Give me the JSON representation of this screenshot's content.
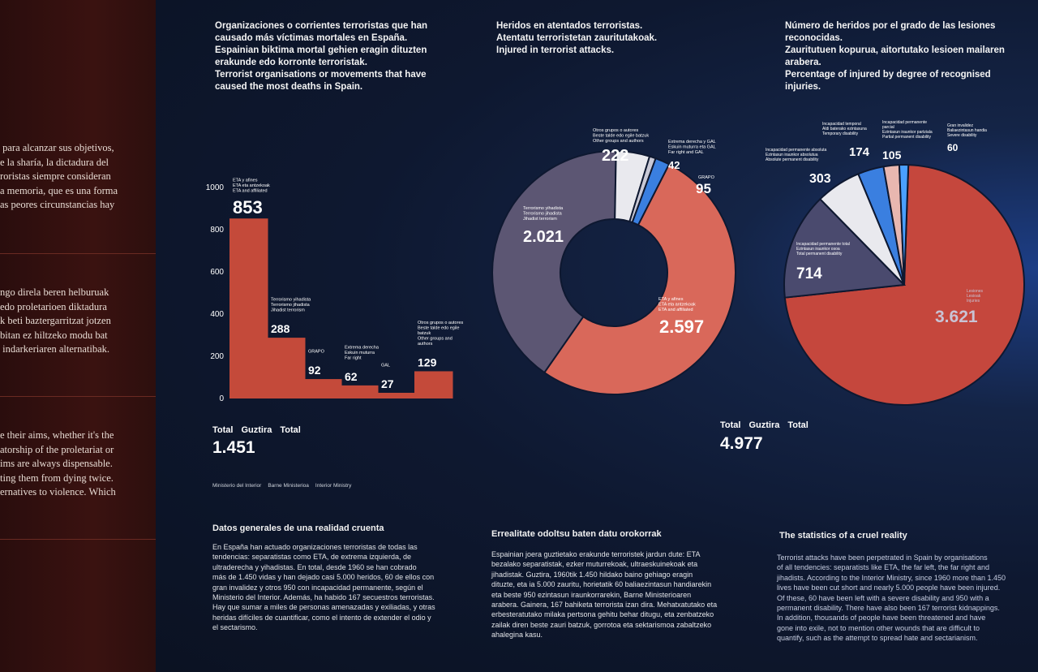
{
  "wall_text": {
    "block1": [
      " para alcanzar sus objetivos,",
      "e la sharía, la dictadura del",
      "roristas siempre consideran",
      "a memoria, que es una forma",
      "as peores circunstancias hay"
    ],
    "block2": [
      "ngo direla beren helburuak",
      "edo proletarioen diktadura",
      "k beti baztergarritzat jotzen",
      "bitan ez hiltzeko modu bat",
      " indarkeriaren alternatibak."
    ],
    "block3": [
      "e their aims, whether it's the",
      "atorship of the proletariat or",
      "ims are always dispensable.",
      "ting them from dying twice.",
      "ernatives to violence. Which"
    ]
  },
  "chart1": {
    "title": [
      "Organizaciones o corrientes terroristas que han",
      "causado más víctimas mortales en España.",
      "Espainian biktima mortal gehien eragin dituzten",
      "erakunde edo korronte terroristak.",
      "Terrorist organisations or movements that have",
      "caused the most deaths in Spain."
    ],
    "total_labels": [
      "Total",
      "Guztira",
      "Total"
    ],
    "total": "1.451",
    "source": [
      "Ministerio del Interior",
      "Barne Ministerioa",
      "Interior Ministry"
    ]
  },
  "chart2": {
    "title": [
      "Heridos en atentados terroristas.",
      "Atentatu terroristetan zauritutakoak.",
      "Injured in terrorist attacks."
    ],
    "total_labels": [
      "Total",
      "Guztira",
      "Total"
    ],
    "total": "4.977"
  },
  "chart3": {
    "title": [
      "Número de heridos por el grado de las lesiones",
      "reconocidas.",
      "Zauritutuen kopurua, aitortutako lesioen mailaren arabera.",
      "Percentage of injured by degree of recognised injuries."
    ]
  },
  "colors": {
    "red": "#c5473d",
    "bar_red": "#c44a3a",
    "salmon": "#d9685a",
    "slate": "#5c5673",
    "slate2": "#4a4a6e",
    "white": "#e9e9ee",
    "blue": "#3a7fe0",
    "light": "#c9c9d6"
  },
  "chart_data": [
    {
      "type": "bar",
      "categories": [
        "ETA y afines / ETA eta antzekoak / ETA and affiliated",
        "Terrorismo yihadista / Terrorismo jihadista / Jihadist terrorism",
        "GRAPO",
        "Extrema derecha / Eskuin muturra / Far right",
        "GAL",
        "Otros grupos o autores / Beste talde edo egile batzuk / Other groups and authors"
      ],
      "label_lines": [
        [
          "ETA y afines",
          "ETA eta antzekoak",
          "ETA and affiliated"
        ],
        [
          "Terrorismo yihadista",
          "Terrorismo jihadista",
          "Jihadist terrorism"
        ],
        [
          "GRAPO"
        ],
        [
          "Extrema derecha",
          "Eskuin muturra",
          "Far right"
        ],
        [
          "GAL"
        ],
        [
          "Otros grupos o autores",
          "Beste talde edo egile",
          "batzuk",
          "Other groups and",
          "authors"
        ]
      ],
      "values": [
        853,
        288,
        92,
        62,
        27,
        129
      ],
      "value_labels": [
        "853",
        "288",
        "92",
        "62",
        "27",
        "129"
      ],
      "yticks": [
        "0",
        "200",
        "400",
        "600",
        "800",
        "1000"
      ],
      "ylim": [
        0,
        1000
      ]
    },
    {
      "type": "pie",
      "donut": true,
      "values": [
        2597,
        2021,
        222,
        42,
        95
      ],
      "value_labels": [
        "2.597",
        "2.021",
        "222",
        "42",
        "95"
      ],
      "label_lines": [
        [
          "ETA y afines",
          "ETA eta antzekoak",
          "ETA and affiliated"
        ],
        [
          "Terrorismo yihadista",
          "Terrorismo jihadista",
          "Jihadist terrorism"
        ],
        [
          "Otros grupos o autores",
          "Beste talde edo egile batzuk",
          "Other groups and authors"
        ],
        [
          "Extrema derecha y GAL",
          "Eskuin muturra eta GAL",
          "Far right and GAL"
        ],
        [
          "GRAPO"
        ]
      ]
    },
    {
      "type": "pie",
      "values": [
        3621,
        714,
        303,
        174,
        105,
        60
      ],
      "value_labels": [
        "3.621",
        "714",
        "303",
        "174",
        "105",
        "60"
      ],
      "label_lines": [
        [
          "Lesiones",
          "Lesioak",
          "Injuries"
        ],
        [
          "Incapacidad permanente total",
          "Ezintasun iraunkor osoa",
          "Total permanent disability"
        ],
        [
          "Incapacidad permanente absoluta",
          "Ezintasun iraunkor absolutua",
          "Absolute permanent disability"
        ],
        [
          "Incapacidad temporal",
          "Aldi baterako ezintasuna",
          "Temporary disability"
        ],
        [
          "Incapacidad permanente",
          "parcial",
          "Ezintasun iraunkor partziala",
          "Partial permanent disability"
        ],
        [
          "Gran invalidez",
          "Baliaezintasun handia",
          "Severe disability"
        ]
      ]
    }
  ],
  "sections": {
    "es": {
      "heading": "Datos generales de una realidad cruenta",
      "lines": [
        "En España han actuado organizaciones terroristas de todas las",
        "tendencias: separatistas como ETA, de extrema izquierda, de",
        "ultraderecha y yihadistas. En total, desde 1960 se han cobrado",
        "más de 1.450 vidas y han dejado casi 5.000 heridos, 60 de ellos con",
        "gran invalidez y otros 950 con incapacidad permanente, según el",
        "Ministerio del Interior. Además, ha habido 167 secuestros terroristas.",
        "Hay que sumar a miles de personas amenazadas y exiliadas, y otras",
        "heridas difíciles de cuantificar, como el intento de extender el odio y",
        "el sectarismo."
      ]
    },
    "eu": {
      "heading": "Errealitate odoltsu baten datu orokorrak",
      "lines": [
        "Espainian joera guztietako erakunde terroristek jardun dute: ETA",
        "bezalako separatistak, ezker muturrekoak, ultraeskuinekoak eta",
        "jihadistak. Guztira, 1960tik 1.450 hildako baino gehiago eragin",
        "dituzte, eta ia 5.000 zauritu, horietatik 60 baliaezintasun handiarekin",
        "eta beste 950 ezintasun iraunkorrarekin, Barne Ministerioaren",
        "arabera. Gainera, 167 bahiketa terrorista izan dira. Mehatxatutako eta",
        "erbesteratutako milaka pertsona gehitu behar ditugu, eta zenbatzeko",
        "zailak diren beste zauri batzuk, gorrotoa eta sektarismoa zabaltzeko",
        "ahalegina kasu."
      ]
    },
    "en": {
      "heading": "The statistics of a cruel reality",
      "lines": [
        "Terrorist attacks have been perpetrated in Spain by organisations",
        "of all tendencies: separatists like ETA, the far left, the far right and",
        "jihadists. According to the Interior Ministry, since 1960 more than 1.450",
        "lives have been cut short and nearly 5.000 people have been injured.",
        "Of these, 60 have been left with a severe disability and 950 with a",
        "permanent disability. There have also been 167 terrorist kidnappings.",
        "In addition, thousands of people have been threatened and have",
        "gone into exile, not to mention other wounds that are difficult to",
        "quantify, such as the attempt to spread hate and sectarianism."
      ]
    }
  }
}
